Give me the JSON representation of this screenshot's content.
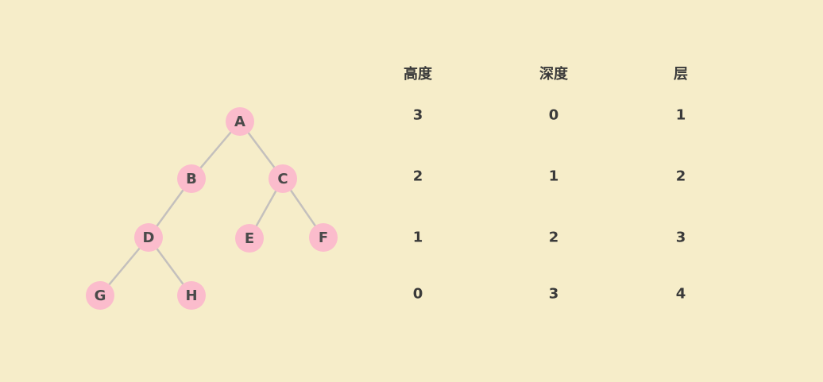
{
  "tree": {
    "nodes": [
      {
        "id": "A",
        "label": "A"
      },
      {
        "id": "B",
        "label": "B"
      },
      {
        "id": "C",
        "label": "C"
      },
      {
        "id": "D",
        "label": "D"
      },
      {
        "id": "E",
        "label": "E"
      },
      {
        "id": "F",
        "label": "F"
      },
      {
        "id": "G",
        "label": "G"
      },
      {
        "id": "H",
        "label": "H"
      }
    ],
    "edges": [
      [
        "A",
        "B"
      ],
      [
        "A",
        "C"
      ],
      [
        "B",
        "D"
      ],
      [
        "C",
        "E"
      ],
      [
        "C",
        "F"
      ],
      [
        "D",
        "G"
      ],
      [
        "D",
        "H"
      ]
    ],
    "node_color": "#fbbccc",
    "edge_color": "#c4c0bd"
  },
  "table": {
    "headers": [
      "高度",
      "深度",
      "层"
    ],
    "rows": [
      [
        "3",
        "0",
        "1"
      ],
      [
        "2",
        "1",
        "2"
      ],
      [
        "1",
        "2",
        "3"
      ],
      [
        "0",
        "3",
        "4"
      ]
    ]
  }
}
